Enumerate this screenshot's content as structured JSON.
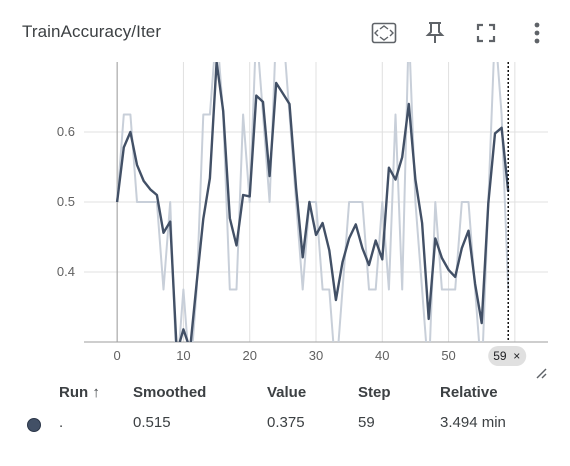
{
  "title": "TrainAccuracy/Iter",
  "toolbar": {
    "icons": [
      "fit-domain-icon",
      "pin-icon",
      "fullscreen-icon",
      "more-vert-icon"
    ]
  },
  "chart_data": {
    "type": "line",
    "xlabel": "",
    "ylabel": "",
    "xlim": [
      -5,
      65
    ],
    "ylim": [
      0.3,
      0.7
    ],
    "x_ticks": [
      "0",
      "10",
      "20",
      "30",
      "40",
      "50"
    ],
    "y_ticks": [
      "0.4",
      "0.5",
      "0.6"
    ],
    "grid": true,
    "hover_step": "59",
    "colors": {
      "smoothed": "#425066",
      "raw": "#c8cfd9",
      "grid": "#e0e0e0"
    },
    "series": [
      {
        "role": "raw",
        "x": [
          0,
          1,
          2,
          3,
          4,
          5,
          6,
          7,
          8,
          9,
          10,
          11,
          12,
          13,
          14,
          15,
          16,
          17,
          18,
          19,
          20,
          21,
          22,
          23,
          24,
          25,
          26,
          27,
          28,
          29,
          30,
          31,
          32,
          33,
          34,
          35,
          36,
          37,
          38,
          39,
          40,
          41,
          42,
          43,
          44,
          45,
          46,
          47,
          48,
          49,
          50,
          51,
          52,
          53,
          54,
          55,
          56,
          57,
          58,
          59
        ],
        "y": [
          0.5,
          0.625,
          0.625,
          0.5,
          0.5,
          0.5,
          0.5,
          0.375,
          0.5,
          0.25,
          0.375,
          0.25,
          0.375,
          0.625,
          0.625,
          0.75,
          0.625,
          0.375,
          0.375,
          0.625,
          0.5,
          0.75,
          0.625,
          0.5,
          0.75,
          0.75,
          0.625,
          0.5,
          0.375,
          0.5,
          0.5,
          0.375,
          0.375,
          0.25,
          0.375,
          0.5,
          0.5,
          0.5,
          0.375,
          0.375,
          0.5,
          0.375,
          0.625,
          0.375,
          0.75,
          0.5,
          0.375,
          0.25,
          0.5,
          0.375,
          0.375,
          0.375,
          0.5,
          0.5,
          0.375,
          0.25,
          0.5,
          0.75,
          0.625,
          0.375
        ]
      },
      {
        "role": "smoothed",
        "x": [
          0,
          1,
          2,
          3,
          4,
          5,
          6,
          7,
          8,
          9,
          10,
          11,
          12,
          13,
          14,
          15,
          16,
          17,
          18,
          19,
          20,
          21,
          22,
          23,
          24,
          25,
          26,
          27,
          28,
          29,
          30,
          31,
          32,
          33,
          34,
          35,
          36,
          37,
          38,
          39,
          40,
          41,
          42,
          43,
          44,
          45,
          46,
          47,
          48,
          49,
          50,
          51,
          52,
          53,
          54,
          55,
          56,
          57,
          58,
          59
        ],
        "y": [
          0.5,
          0.578,
          0.6,
          0.553,
          0.53,
          0.518,
          0.51,
          0.456,
          0.472,
          0.285,
          0.318,
          0.29,
          0.385,
          0.476,
          0.534,
          0.7,
          0.63,
          0.477,
          0.438,
          0.51,
          0.508,
          0.652,
          0.643,
          0.537,
          0.67,
          0.655,
          0.64,
          0.52,
          0.421,
          0.5,
          0.453,
          0.47,
          0.431,
          0.36,
          0.414,
          0.448,
          0.468,
          0.434,
          0.41,
          0.445,
          0.418,
          0.549,
          0.532,
          0.564,
          0.64,
          0.532,
          0.47,
          0.333,
          0.448,
          0.42,
          0.403,
          0.393,
          0.434,
          0.459,
          0.383,
          0.327,
          0.498,
          0.598,
          0.606,
          0.515
        ]
      }
    ]
  },
  "table": {
    "headers": {
      "run": "Run ↑",
      "smoothed": "Smoothed",
      "value": "Value",
      "step": "Step",
      "relative": "Relative"
    },
    "rows": [
      {
        "run": ".",
        "smoothed": "0.515",
        "value": "0.375",
        "step": "59",
        "relative": "3.494 min",
        "color": "#425066"
      }
    ]
  }
}
